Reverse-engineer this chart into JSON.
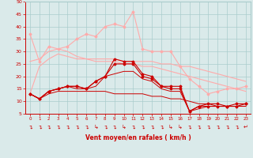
{
  "x": [
    0,
    1,
    2,
    3,
    4,
    5,
    6,
    7,
    8,
    9,
    10,
    11,
    12,
    13,
    14,
    15,
    16,
    17,
    18,
    19,
    20,
    21,
    22,
    23
  ],
  "series": [
    {
      "y": [
        37,
        26,
        32,
        31,
        32,
        35,
        37,
        36,
        40,
        41,
        40,
        46,
        31,
        30,
        30,
        30,
        24,
        19,
        16,
        13,
        14,
        15,
        15,
        16
      ],
      "color": "#ffaaaa",
      "linewidth": 0.8,
      "marker": "D",
      "markersize": 1.5
    },
    {
      "y": [
        26,
        27,
        30,
        31,
        30,
        28,
        27,
        27,
        27,
        27,
        26,
        26,
        26,
        26,
        25,
        25,
        24,
        24,
        23,
        22,
        21,
        20,
        19,
        18
      ],
      "color": "#ffaaaa",
      "linewidth": 0.8,
      "marker": null,
      "markersize": 0
    },
    {
      "y": [
        13,
        24,
        27,
        29,
        28,
        27,
        27,
        26,
        26,
        26,
        25,
        25,
        24,
        24,
        23,
        22,
        21,
        20,
        19,
        18,
        17,
        16,
        15,
        14
      ],
      "color": "#ffaaaa",
      "linewidth": 0.8,
      "marker": null,
      "markersize": 0
    },
    {
      "y": [
        13,
        11,
        14,
        15,
        16,
        16,
        15,
        18,
        20,
        27,
        26,
        26,
        21,
        20,
        16,
        16,
        16,
        6,
        8,
        9,
        9,
        8,
        9,
        9
      ],
      "color": "#cc0000",
      "linewidth": 0.8,
      "marker": "D",
      "markersize": 1.5
    },
    {
      "y": [
        13,
        11,
        14,
        15,
        16,
        16,
        15,
        18,
        20,
        25,
        25,
        25,
        20,
        19,
        16,
        15,
        15,
        6,
        8,
        8,
        8,
        8,
        8,
        9
      ],
      "color": "#cc0000",
      "linewidth": 0.8,
      "marker": "D",
      "markersize": 1.5
    },
    {
      "y": [
        13,
        11,
        14,
        15,
        16,
        15,
        15,
        16,
        20,
        21,
        22,
        22,
        19,
        18,
        15,
        14,
        14,
        6,
        7,
        8,
        8,
        8,
        8,
        8
      ],
      "color": "#cc0000",
      "linewidth": 0.7,
      "marker": null,
      "markersize": 0
    },
    {
      "y": [
        13,
        11,
        13,
        14,
        14,
        14,
        14,
        14,
        14,
        13,
        13,
        13,
        13,
        12,
        12,
        11,
        11,
        10,
        9,
        9,
        8,
        8,
        8,
        8
      ],
      "color": "#cc0000",
      "linewidth": 0.7,
      "marker": null,
      "markersize": 0
    }
  ],
  "xlabel": "Vent moyen/en rafales ( km/h )",
  "ylim": [
    5,
    50
  ],
  "xlim": [
    -0.5,
    23.5
  ],
  "yticks": [
    5,
    10,
    15,
    20,
    25,
    30,
    35,
    40,
    45,
    50
  ],
  "xticks": [
    0,
    1,
    2,
    3,
    4,
    5,
    6,
    7,
    8,
    9,
    10,
    11,
    12,
    13,
    14,
    15,
    16,
    17,
    18,
    19,
    20,
    21,
    22,
    23
  ],
  "bg_color": "#daeaea",
  "grid_color": "#aacccc",
  "tick_color": "#cc0000",
  "label_color": "#cc0000",
  "arrow_chars": [
    "↴",
    "↴",
    "↴",
    "↴",
    "↴",
    "↴",
    "↴",
    "↳",
    "↴",
    "↴",
    "↳",
    "↴",
    "↴",
    "↴",
    "↴",
    "↳",
    "↳",
    "↴",
    "↴",
    "↴",
    "↴",
    "↴",
    "↴",
    "↵"
  ]
}
